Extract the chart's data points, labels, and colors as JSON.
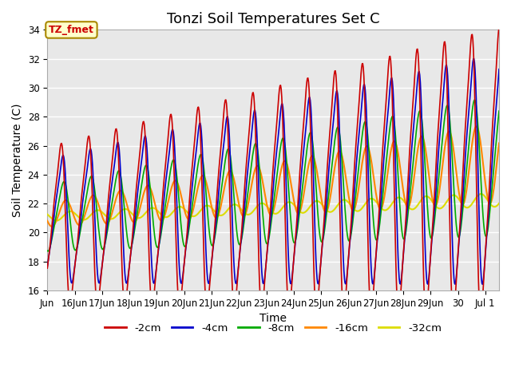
{
  "title": "Tonzi Soil Temperatures Set C",
  "xlabel": "Time",
  "ylabel": "Soil Temperature (C)",
  "ylim": [
    16,
    34
  ],
  "xtick_labels": [
    "Jun",
    "16Jun",
    "17Jun",
    "18Jun",
    "19Jun",
    "20Jun",
    "21Jun",
    "22Jun",
    "23Jun",
    "24Jun",
    "25Jun",
    "26Jun",
    "27Jun",
    "28Jun",
    "29Jun",
    "30",
    "Jul 1"
  ],
  "xtick_positions": [
    15,
    16,
    17,
    18,
    19,
    20,
    21,
    22,
    23,
    24,
    25,
    26,
    27,
    28,
    29,
    30,
    31
  ],
  "ytick_positions": [
    16,
    18,
    20,
    22,
    24,
    26,
    28,
    30,
    32,
    34
  ],
  "colors": {
    "2cm": "#cc0000",
    "4cm": "#0000cc",
    "8cm": "#00aa00",
    "16cm": "#ff8800",
    "32cm": "#dddd00"
  },
  "legend_labels": [
    "-2cm",
    "-4cm",
    "-8cm",
    "-16cm",
    "-32cm"
  ],
  "legend_colors": [
    "#cc0000",
    "#0000cc",
    "#00aa00",
    "#ff8800",
    "#dddd00"
  ],
  "annotation_text": "TZ_fmet",
  "annotation_color": "#cc0000",
  "annotation_bg": "#ffffcc",
  "plot_bg_color": "#e8e8e8",
  "title_fontsize": 13,
  "axis_label_fontsize": 10,
  "tick_fontsize": 8.5
}
